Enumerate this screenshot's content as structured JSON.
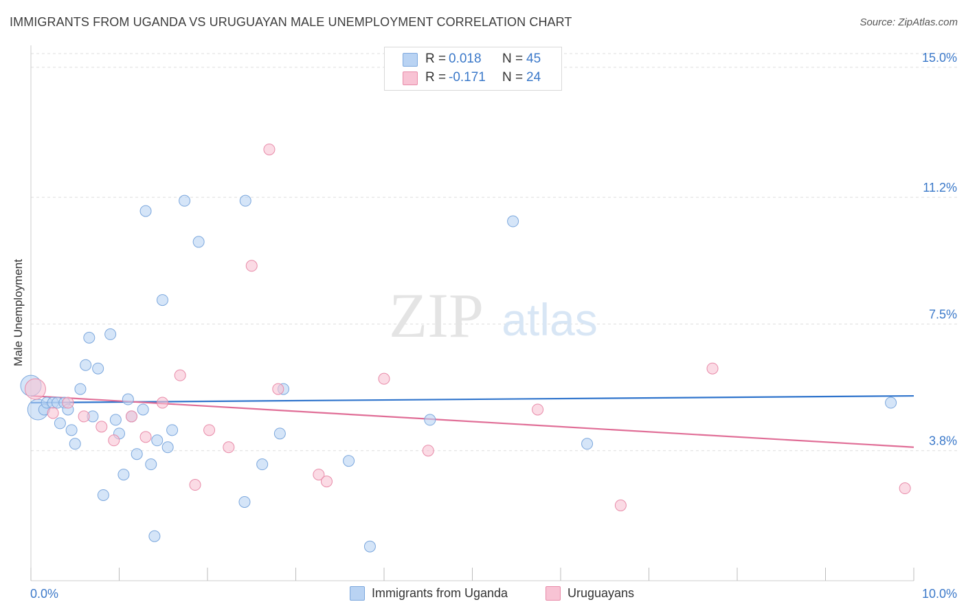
{
  "header": {
    "title": "IMMIGRANTS FROM UGANDA VS URUGUAYAN MALE UNEMPLOYMENT CORRELATION CHART",
    "source": "Source: ZipAtlas.com"
  },
  "watermark": {
    "zip": "ZIP",
    "atlas": "atlas"
  },
  "legend": {
    "rows": [
      {
        "r_label": "R =",
        "r_value": "0.018",
        "n_label": "N =",
        "n_value": "45"
      },
      {
        "r_label": "R =",
        "r_value": "-0.171",
        "n_label": "N =",
        "n_value": "24"
      }
    ]
  },
  "colors": {
    "blue_fill": "#b9d3f3",
    "blue_stroke": "#7ba7dd",
    "blue_line": "#2f74cc",
    "pink_fill": "#f8c3d4",
    "pink_stroke": "#e88aa8",
    "pink_line": "#e06d96",
    "tick_text": "#3a78c9",
    "grid": "#dddddd"
  },
  "chart_data": {
    "type": "scatter",
    "title": "IMMIGRANTS FROM UGANDA VS URUGUAYAN MALE UNEMPLOYMENT CORRELATION CHART",
    "xlabel": "",
    "ylabel": "Male Unemployment",
    "xlim": [
      0,
      10
    ],
    "ylim": [
      0,
      15.4
    ],
    "x_tick_labels": [
      "0.0%",
      "10.0%"
    ],
    "y_ticks": [
      3.8,
      7.5,
      11.2,
      15.0
    ],
    "y_tick_labels": [
      "3.8%",
      "7.5%",
      "11.2%",
      "15.0%"
    ],
    "grid": true,
    "legend_position": "top-center",
    "series": [
      {
        "name": "Immigrants from Uganda",
        "color": "blue",
        "trend": [
          [
            0,
            5.2
          ],
          [
            10,
            5.4
          ]
        ],
        "points": [
          [
            0.0,
            5.7
          ],
          [
            0.08,
            5.0
          ],
          [
            0.15,
            5.0
          ],
          [
            0.18,
            5.2
          ],
          [
            0.25,
            5.2
          ],
          [
            0.3,
            5.2
          ],
          [
            0.33,
            4.6
          ],
          [
            0.38,
            5.2
          ],
          [
            0.42,
            5.0
          ],
          [
            0.46,
            4.4
          ],
          [
            0.5,
            4.0
          ],
          [
            0.56,
            5.6
          ],
          [
            0.62,
            6.3
          ],
          [
            0.66,
            7.1
          ],
          [
            0.7,
            4.8
          ],
          [
            0.76,
            6.2
          ],
          [
            0.82,
            2.5
          ],
          [
            0.9,
            7.2
          ],
          [
            0.96,
            4.7
          ],
          [
            1.0,
            4.3
          ],
          [
            1.05,
            3.1
          ],
          [
            1.1,
            5.3
          ],
          [
            1.14,
            4.8
          ],
          [
            1.2,
            3.7
          ],
          [
            1.27,
            5.0
          ],
          [
            1.3,
            10.8
          ],
          [
            1.36,
            3.4
          ],
          [
            1.4,
            1.3
          ],
          [
            1.43,
            4.1
          ],
          [
            1.49,
            8.2
          ],
          [
            1.55,
            3.9
          ],
          [
            1.6,
            4.4
          ],
          [
            1.74,
            11.1
          ],
          [
            1.9,
            9.9
          ],
          [
            2.42,
            2.3
          ],
          [
            2.43,
            11.1
          ],
          [
            2.62,
            3.4
          ],
          [
            2.82,
            4.3
          ],
          [
            2.86,
            5.6
          ],
          [
            3.6,
            3.5
          ],
          [
            3.84,
            1.0
          ],
          [
            4.52,
            4.7
          ],
          [
            5.46,
            10.5
          ],
          [
            6.3,
            4.0
          ],
          [
            9.74,
            5.2
          ]
        ]
      },
      {
        "name": "Uruguayans",
        "color": "pink",
        "trend": [
          [
            0,
            5.4
          ],
          [
            10,
            3.9
          ]
        ],
        "points": [
          [
            0.05,
            5.6
          ],
          [
            0.25,
            4.9
          ],
          [
            0.42,
            5.2
          ],
          [
            0.6,
            4.8
          ],
          [
            0.8,
            4.5
          ],
          [
            0.94,
            4.1
          ],
          [
            1.14,
            4.8
          ],
          [
            1.3,
            4.2
          ],
          [
            1.49,
            5.2
          ],
          [
            1.69,
            6.0
          ],
          [
            1.86,
            2.8
          ],
          [
            2.02,
            4.4
          ],
          [
            2.24,
            3.9
          ],
          [
            2.5,
            9.2
          ],
          [
            2.8,
            5.6
          ],
          [
            2.7,
            12.6
          ],
          [
            3.26,
            3.1
          ],
          [
            3.35,
            2.9
          ],
          [
            4.0,
            5.9
          ],
          [
            4.5,
            3.8
          ],
          [
            5.74,
            5.0
          ],
          [
            6.68,
            2.2
          ],
          [
            7.72,
            6.2
          ],
          [
            9.9,
            2.7
          ]
        ]
      }
    ]
  }
}
